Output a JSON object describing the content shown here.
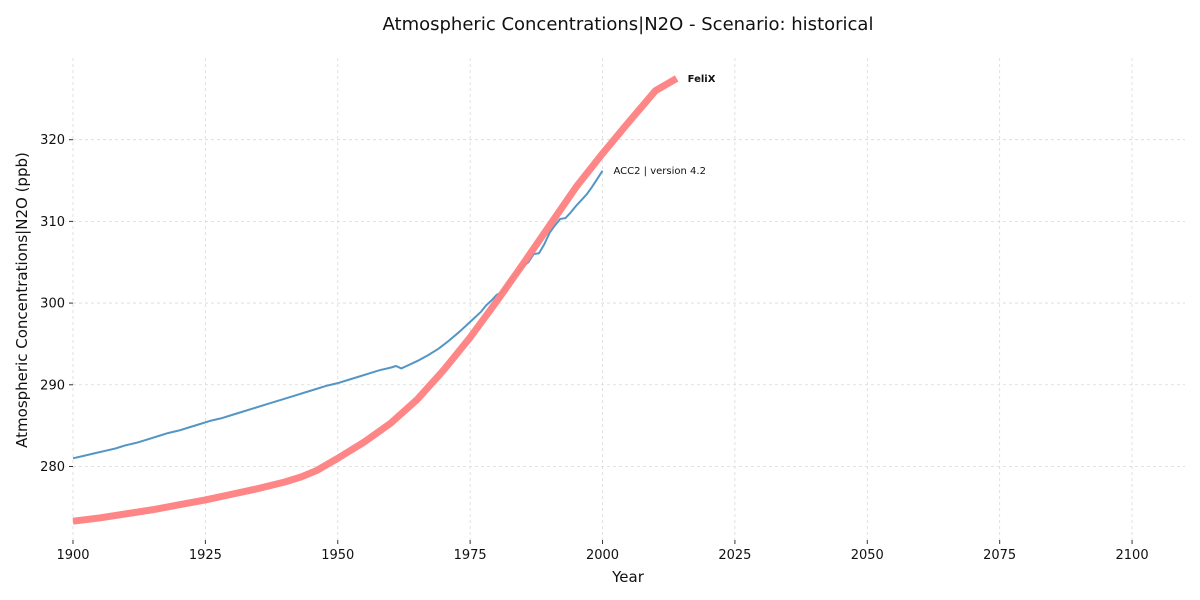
{
  "chart_data": {
    "type": "line",
    "title": "Atmospheric Concentrations|N2O - Scenario: historical",
    "xlabel": "Year",
    "ylabel": "Atmospheric Concentrations|N2O (ppb)",
    "xlim": [
      1900,
      2110
    ],
    "ylim": [
      271,
      330
    ],
    "xticks": [
      1900,
      1925,
      1950,
      1975,
      2000,
      2025,
      2050,
      2075,
      2100
    ],
    "yticks": [
      280,
      290,
      300,
      310,
      320
    ],
    "grid": true,
    "series": [
      {
        "name": "ACC2 | version 4.2",
        "color": "#4a90c2",
        "label_bold": false,
        "x": [
          1900,
          1902,
          1904,
          1906,
          1908,
          1910,
          1912,
          1914,
          1916,
          1918,
          1920,
          1922,
          1924,
          1926,
          1928,
          1930,
          1932,
          1934,
          1936,
          1938,
          1940,
          1942,
          1944,
          1946,
          1948,
          1950,
          1952,
          1954,
          1956,
          1958,
          1960,
          1961,
          1962,
          1963,
          1965,
          1967,
          1969,
          1971,
          1973,
          1975,
          1977,
          1978,
          1979,
          1980,
          1981,
          1982,
          1983,
          1984,
          1985,
          1986,
          1987,
          1988,
          1989,
          1990,
          1991,
          1992,
          1993,
          1994,
          1995,
          1996,
          1997,
          1998,
          1999,
          2000
        ],
        "values": [
          281.0,
          281.3,
          281.6,
          281.9,
          282.2,
          282.6,
          282.9,
          283.3,
          283.7,
          284.1,
          284.4,
          284.8,
          285.2,
          285.6,
          285.9,
          286.3,
          286.7,
          287.1,
          287.5,
          287.9,
          288.3,
          288.7,
          289.1,
          289.5,
          289.9,
          290.2,
          290.6,
          291.0,
          291.4,
          291.8,
          292.1,
          292.3,
          292.0,
          292.3,
          292.9,
          293.6,
          294.4,
          295.4,
          296.5,
          297.7,
          298.9,
          299.7,
          300.3,
          301.0,
          301.3,
          302.2,
          303.1,
          303.8,
          304.5,
          305.0,
          306.0,
          306.1,
          307.2,
          308.6,
          309.5,
          310.3,
          310.4,
          311.1,
          311.9,
          312.6,
          313.3,
          314.2,
          315.2,
          316.2
        ]
      },
      {
        "name": "FeliX",
        "color": "#ff7f7f",
        "label_bold": true,
        "x": [
          1900,
          1905,
          1910,
          1915,
          1920,
          1925,
          1930,
          1935,
          1940,
          1943,
          1946,
          1950,
          1955,
          1960,
          1965,
          1970,
          1975,
          1980,
          1985,
          1990,
          1995,
          2000,
          2005,
          2010,
          2014
        ],
        "values": [
          273.3,
          273.7,
          274.2,
          274.7,
          275.3,
          275.9,
          276.6,
          277.3,
          278.1,
          278.7,
          279.5,
          281.0,
          283.0,
          285.3,
          288.2,
          291.8,
          295.8,
          300.2,
          304.8,
          309.5,
          314.2,
          318.3,
          322.2,
          326.0,
          327.5
        ]
      }
    ]
  }
}
